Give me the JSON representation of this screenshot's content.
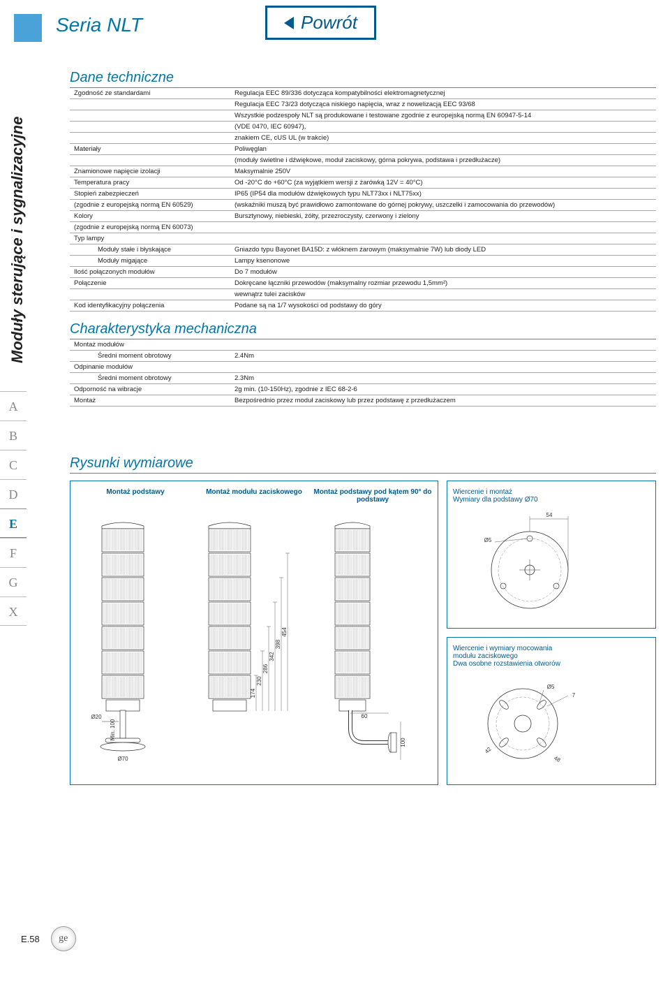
{
  "header": {
    "series": "Seria NLT",
    "back": "Powrót",
    "side_label": "Moduły sterujące i sygnalizacyjne",
    "letters": [
      "A",
      "B",
      "C",
      "D",
      "E",
      "F",
      "G",
      "X"
    ],
    "active_letter": "E"
  },
  "colors": {
    "accent": "#0077a8",
    "boxborder": "#0077a8"
  },
  "sections": {
    "tech_title": "Dane techniczne",
    "mech_title": "Charakterystyka mechaniczna",
    "draw_title": "Rysunki wymiarowe"
  },
  "tech_rows": [
    {
      "label": "Zgodność ze standardami",
      "value": "Regulacja EEC 89/336 dotycząca kompatybilności elektromagnetycznej"
    },
    {
      "label": "",
      "value": "Regulacja EEC 73/23 dotycząca niskiego napięcia, wraz z nowelizacją EEC 93/68"
    },
    {
      "label": "",
      "value": "Wszystkie podzespoły NLT są produkowane i testowane zgodnie z europejską normą EN 60947-5-14"
    },
    {
      "label": "",
      "value": "(VDE 0470, IEC 60947),"
    },
    {
      "label": "",
      "value": "znakiem CE, cUS UL (w trakcie)"
    },
    {
      "label": "Materiały",
      "value": "Poliwęglan"
    },
    {
      "label": "",
      "value": "(moduły świetlne i dźwiękowe, moduł zaciskowy, górna pokrywa, podstawa i przedłużacze)"
    },
    {
      "label": "Znamionowe napięcie izolacji",
      "value": "Maksymalnie 250V"
    },
    {
      "label": "Temperatura pracy",
      "value": "Od -20°C do +60°C (za wyjątkiem wersji z żarówką 12V = 40°C)"
    },
    {
      "label": "Stopień zabezpieczeń",
      "value": "IP65 (IP54 dla modułów dźwiękowych typu NLT73xx i NLT75xx)"
    },
    {
      "label": "(zgodnie z europejską normą EN 60529)",
      "value": "(wskaźniki muszą być prawidłowo zamontowane do górnej pokrywy, uszczelki i zamocowania do przewodów)"
    },
    {
      "label": "Kolory",
      "value": "Bursztynowy, niebieski, żółty, przezroczysty, czerwony i zielony"
    },
    {
      "label": "(zgodnie z europejską normą EN 60073)",
      "value": ""
    },
    {
      "label": "Typ lampy",
      "value": ""
    },
    {
      "label": "Moduły stałe i błyskające",
      "value": "Gniazdo typu Bayonet BA15D: z włóknem żarowym (maksymalnie 7W) lub diody LED",
      "indent": true
    },
    {
      "label": "Moduły migające",
      "value": "Lampy ksenonowe",
      "indent": true
    },
    {
      "label": "Ilość połączonych modułów",
      "value": "Do 7 modułów"
    },
    {
      "label": "Połączenie",
      "value": "Dokręcane łączniki przewodów (maksymalny rozmiar przewodu 1,5mm²)"
    },
    {
      "label": "",
      "value": "wewnątrz tulei zacisków"
    },
    {
      "label": "Kod identyfikacyjny połączenia",
      "value": "Podane są na 1/7 wysokości od podstawy do góry"
    }
  ],
  "mech_rows": [
    {
      "label": "Montaż modułów",
      "value": ""
    },
    {
      "label": "Średni moment obrotowy",
      "value": "2.4Nm",
      "indent": true
    },
    {
      "label": "Odpinanie modułów",
      "value": ""
    },
    {
      "label": "Średni moment obrotowy",
      "value": "2.3Nm",
      "indent": true
    },
    {
      "label": "Odporność na wibracje",
      "value": "2g min. (10-150Hz), zgodnie z IEC 68-2-6"
    },
    {
      "label": "Montaż",
      "value": "Bezpośrednio przez moduł zaciskowy lub przez podstawę z przedłużaczem"
    }
  ],
  "drawings": {
    "col1": "Montaż podstawy",
    "col2": "Montaż modułu zaciskowego",
    "col3": "Montaż podstawy pod kątem 90° do podstawy",
    "side1_l1": "Wiercenie i montaż",
    "side1_l2": "Wymiary dla podstawy Ø70",
    "side2_l1": "Wiercenie i wymiary mocowania",
    "side2_l2": "modułu zaciskowego",
    "side2_l3": "Dwa osobne rozstawienia otworów",
    "dims": {
      "h1": "174",
      "h2": "230",
      "h3": "286",
      "h4": "342",
      "h5": "398",
      "h6": "454",
      "min100": "Min. 100",
      "d20": "Ø20",
      "d70": "Ø70",
      "w60": "60",
      "h100": "100",
      "ring_54": "54",
      "ring_d5": "Ø5",
      "clamp_d5": "Ø5",
      "clamp_7": "7",
      "clamp_42": "42",
      "clamp_48": "48"
    }
  },
  "footer": {
    "pageno": "E.58"
  }
}
